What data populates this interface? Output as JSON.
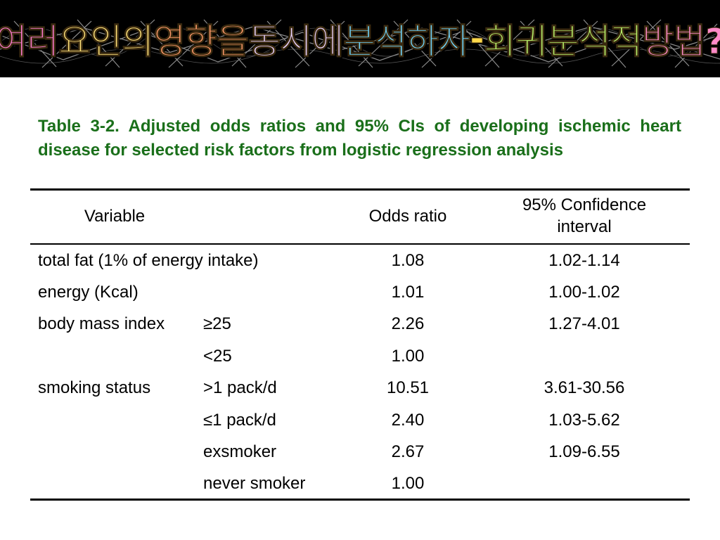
{
  "slide": {
    "title": "여러 요인의 영향을 동시에 분석하자 - 회귀분석적 방법?",
    "title_colors": [
      "#ff7ad0",
      "#ffe27a",
      "#ff9a6a",
      "#e9d2ff",
      "#6fd6ff",
      "#ffd84a",
      "#b9f26a",
      "#ff8ac9",
      "#9cc8ff",
      "#ffef8a",
      "#c6a2ff",
      "#7ae8c8",
      "#ff9e5e",
      "#ffd0f0"
    ],
    "caption": "Table 3-2. Adjusted odds ratios and 95% CIs of developing ischemic heart disease for selected risk factors from logistic regression analysis",
    "caption_color": "#1a6f1a"
  },
  "table": {
    "headers": {
      "variable": "Variable",
      "odds_ratio": "Odds ratio",
      "ci_line1": "95% Confidence",
      "ci_line2": "interval"
    },
    "rows": [
      {
        "variable": "total fat  (1% of energy intake)",
        "sub": "",
        "odds_ratio": "1.08",
        "ci": "1.02-1.14"
      },
      {
        "variable": "energy   (Kcal)",
        "sub": "",
        "odds_ratio": "1.01",
        "ci": "1.00-1.02"
      },
      {
        "variable": "body mass index",
        "sub": "≥25",
        "odds_ratio": "2.26",
        "ci": "1.27-4.01"
      },
      {
        "variable": "",
        "sub": "<25",
        "odds_ratio": "1.00",
        "ci": ""
      },
      {
        "variable": "smoking status",
        "sub": ">1 pack/d",
        "odds_ratio": "10.51",
        "ci": "3.61-30.56"
      },
      {
        "variable": "",
        "sub": "≤1 pack/d",
        "odds_ratio": "2.40",
        "ci": "1.03-5.62"
      },
      {
        "variable": "",
        "sub": "exsmoker",
        "odds_ratio": "2.67",
        "ci": "1.09-6.55"
      },
      {
        "variable": "",
        "sub": "never smoker",
        "odds_ratio": "1.00",
        "ci": ""
      }
    ]
  }
}
